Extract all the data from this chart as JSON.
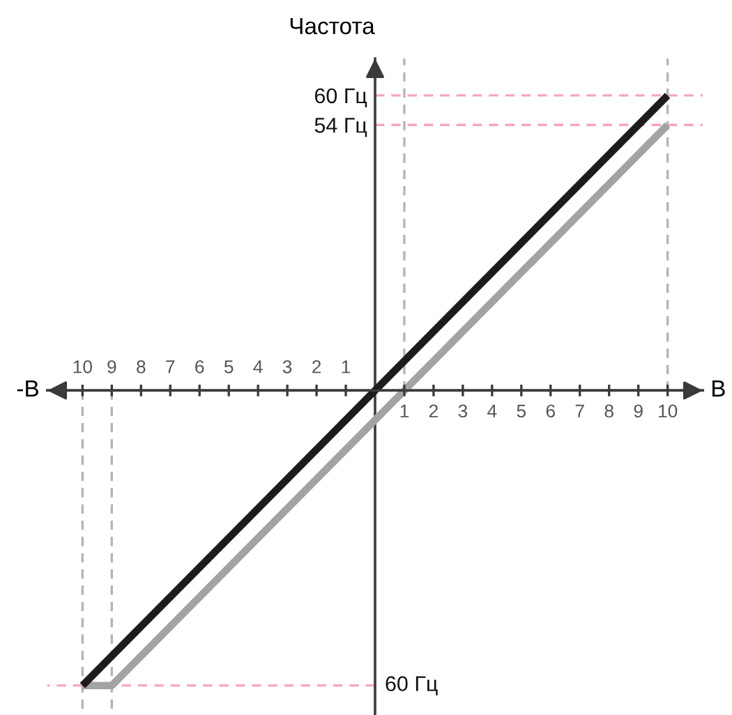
{
  "chart_data": {
    "type": "line",
    "ylabel": "Частота",
    "xlabel": "В",
    "annotations": [
      "-В",
      {
        "text": "60 Гц",
        "x": 0,
        "y": -60
      }
    ],
    "series": [
      {
        "color": "#a3a3a3",
        "x": [
          -10,
          -9,
          10
        ],
        "values": [
          -60,
          -60,
          54
        ]
      },
      {
        "color": "#1c1c1c",
        "x": [
          -10,
          10
        ],
        "values": [
          -60,
          60
        ]
      }
    ],
    "xlim": [
      -11.2,
      11.2
    ],
    "ylim": [
      -66,
      67.5
    ],
    "x2lim": [
      -11.2,
      11.2
    ],
    "xticks": [
      {
        "value": -10,
        "label": "10"
      },
      {
        "value": -9,
        "label": "9"
      },
      {
        "value": -8,
        "label": "8"
      },
      {
        "value": -7,
        "label": "7"
      },
      {
        "value": -6,
        "label": "6"
      },
      {
        "value": -5,
        "label": "5"
      },
      {
        "value": -4,
        "label": "4"
      },
      {
        "value": -3,
        "label": "3"
      },
      {
        "value": -2,
        "label": "2"
      },
      {
        "value": -1,
        "label": "1"
      }
    ],
    "x2ticks": [
      1,
      2,
      3,
      4,
      5,
      6,
      7,
      8,
      9,
      10
    ],
    "yticks": [
      {
        "value": 60,
        "label": "60 Гц"
      },
      {
        "value": 54,
        "label": "54 Гц"
      }
    ],
    "ref_lines": [
      {
        "axis": "y",
        "value": 60,
        "color": "#f4a6bd",
        "line_style": "dashed"
      },
      {
        "axis": "y",
        "value": 54,
        "color": "#f4a6bd",
        "line_style": "dashed"
      },
      {
        "axis": "y",
        "value": -60,
        "color": "#f4a6bd",
        "line_style": "dashed"
      },
      {
        "axis": "x",
        "value": 1,
        "color": "#b4b4b4",
        "line_style": "dashed"
      },
      {
        "axis": "x",
        "value": 10,
        "color": "#b4b4b4",
        "line_style": "dashed"
      },
      {
        "axis": "x",
        "value": -10,
        "color": "#b4b4b4",
        "line_style": "dashed"
      },
      {
        "axis": "x",
        "value": -9,
        "color": "#b4b4b4",
        "line_style": "dashed"
      }
    ],
    "grid": false,
    "legend": false,
    "marker": "none",
    "line_style": "solid"
  }
}
